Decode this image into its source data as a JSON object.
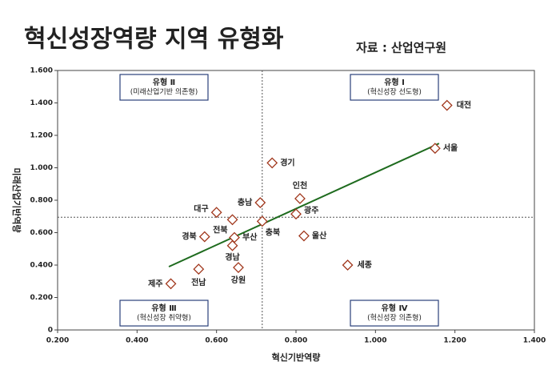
{
  "chart_data": {
    "type": "scatter",
    "title": "혁신성장역량 지역 유형화",
    "subtitle": "자료 : 산업연구원",
    "x_label": "혁신기반역량",
    "y_label": "미래산업기반역량",
    "labels": [
      "대전",
      "서울",
      "경기",
      "인천",
      "충남",
      "광주",
      "대구",
      "전북",
      "충북",
      "경북",
      "부산",
      "울산",
      "경남",
      "세종",
      "강원",
      "전남",
      "제주"
    ],
    "x": [
      1.18,
      1.15,
      0.74,
      0.81,
      0.71,
      0.8,
      0.6,
      0.64,
      0.715,
      0.57,
      0.645,
      0.82,
      0.64,
      0.93,
      0.655,
      0.555,
      0.485
    ],
    "values": [
      1.385,
      1.12,
      1.03,
      0.81,
      0.785,
      0.715,
      0.725,
      0.68,
      0.67,
      0.575,
      0.57,
      0.58,
      0.52,
      0.4,
      0.385,
      0.375,
      0.285
    ],
    "color": "#a0361b",
    "trendline": {
      "x": [
        0.48,
        1.16
      ],
      "y": [
        0.39,
        1.15
      ],
      "color": "#1e6b1e"
    },
    "reference_lines": {
      "x": 0.715,
      "y": 0.695
    },
    "annotations": [
      {
        "title": "유형 Ⅱ",
        "text": "(미래산업기반 의존형)"
      },
      {
        "title": "유형 Ⅰ",
        "text": "(혁신성장 선도형)"
      },
      {
        "title": "유형 Ⅲ",
        "text": "(혁신성장 취약형)"
      },
      {
        "title": "유형 Ⅳ",
        "text": "(혁신성장 의존형)"
      }
    ],
    "xlim": [
      0.2,
      1.4
    ],
    "xticks": [
      {
        "value": 0.2,
        "label": "0.200"
      },
      {
        "value": 0.4,
        "label": "0.400"
      },
      {
        "value": 0.6,
        "label": "0.600"
      },
      {
        "value": 0.8,
        "label": "0.800"
      },
      {
        "value": 1.0,
        "label": "1.000"
      },
      {
        "value": 1.2,
        "label": "1.200"
      },
      {
        "value": 1.4,
        "label": "1.400"
      }
    ],
    "ylim": [
      0,
      1.6
    ],
    "yticks": [
      0,
      {
        "value": 0.2,
        "label": "0.200"
      },
      {
        "value": 0.4,
        "label": "0.400"
      },
      {
        "value": 0.6,
        "label": "0.600"
      },
      {
        "value": 0.8,
        "label": "0.800"
      },
      {
        "value": 1.0,
        "label": "1.000"
      },
      {
        "value": 1.2,
        "label": "1.200"
      },
      {
        "value": 1.4,
        "label": "1.400"
      },
      {
        "value": 1.6,
        "label": "1.600"
      }
    ]
  }
}
